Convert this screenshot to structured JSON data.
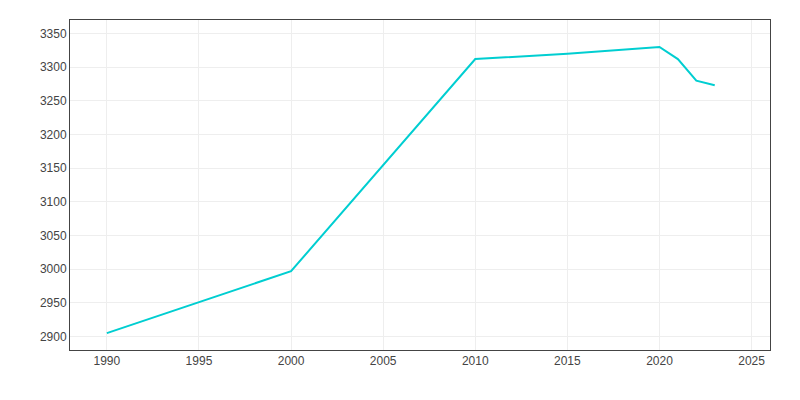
{
  "chart_data": {
    "type": "line",
    "x": [
      1990,
      2000,
      2010,
      2015,
      2020,
      2021,
      2022,
      2023
    ],
    "values": [
      2905,
      2997,
      3312,
      3320,
      3330,
      3312,
      3280,
      3273
    ],
    "color": "#00CED1",
    "xlim": [
      1988,
      2026
    ],
    "ylim": [
      2880,
      3370
    ],
    "xticks": [
      1990,
      1995,
      2000,
      2005,
      2010,
      2015,
      2020,
      2025
    ],
    "yticks": [
      2900,
      2950,
      3000,
      3050,
      3100,
      3150,
      3200,
      3250,
      3300,
      3350
    ],
    "grid": true
  }
}
